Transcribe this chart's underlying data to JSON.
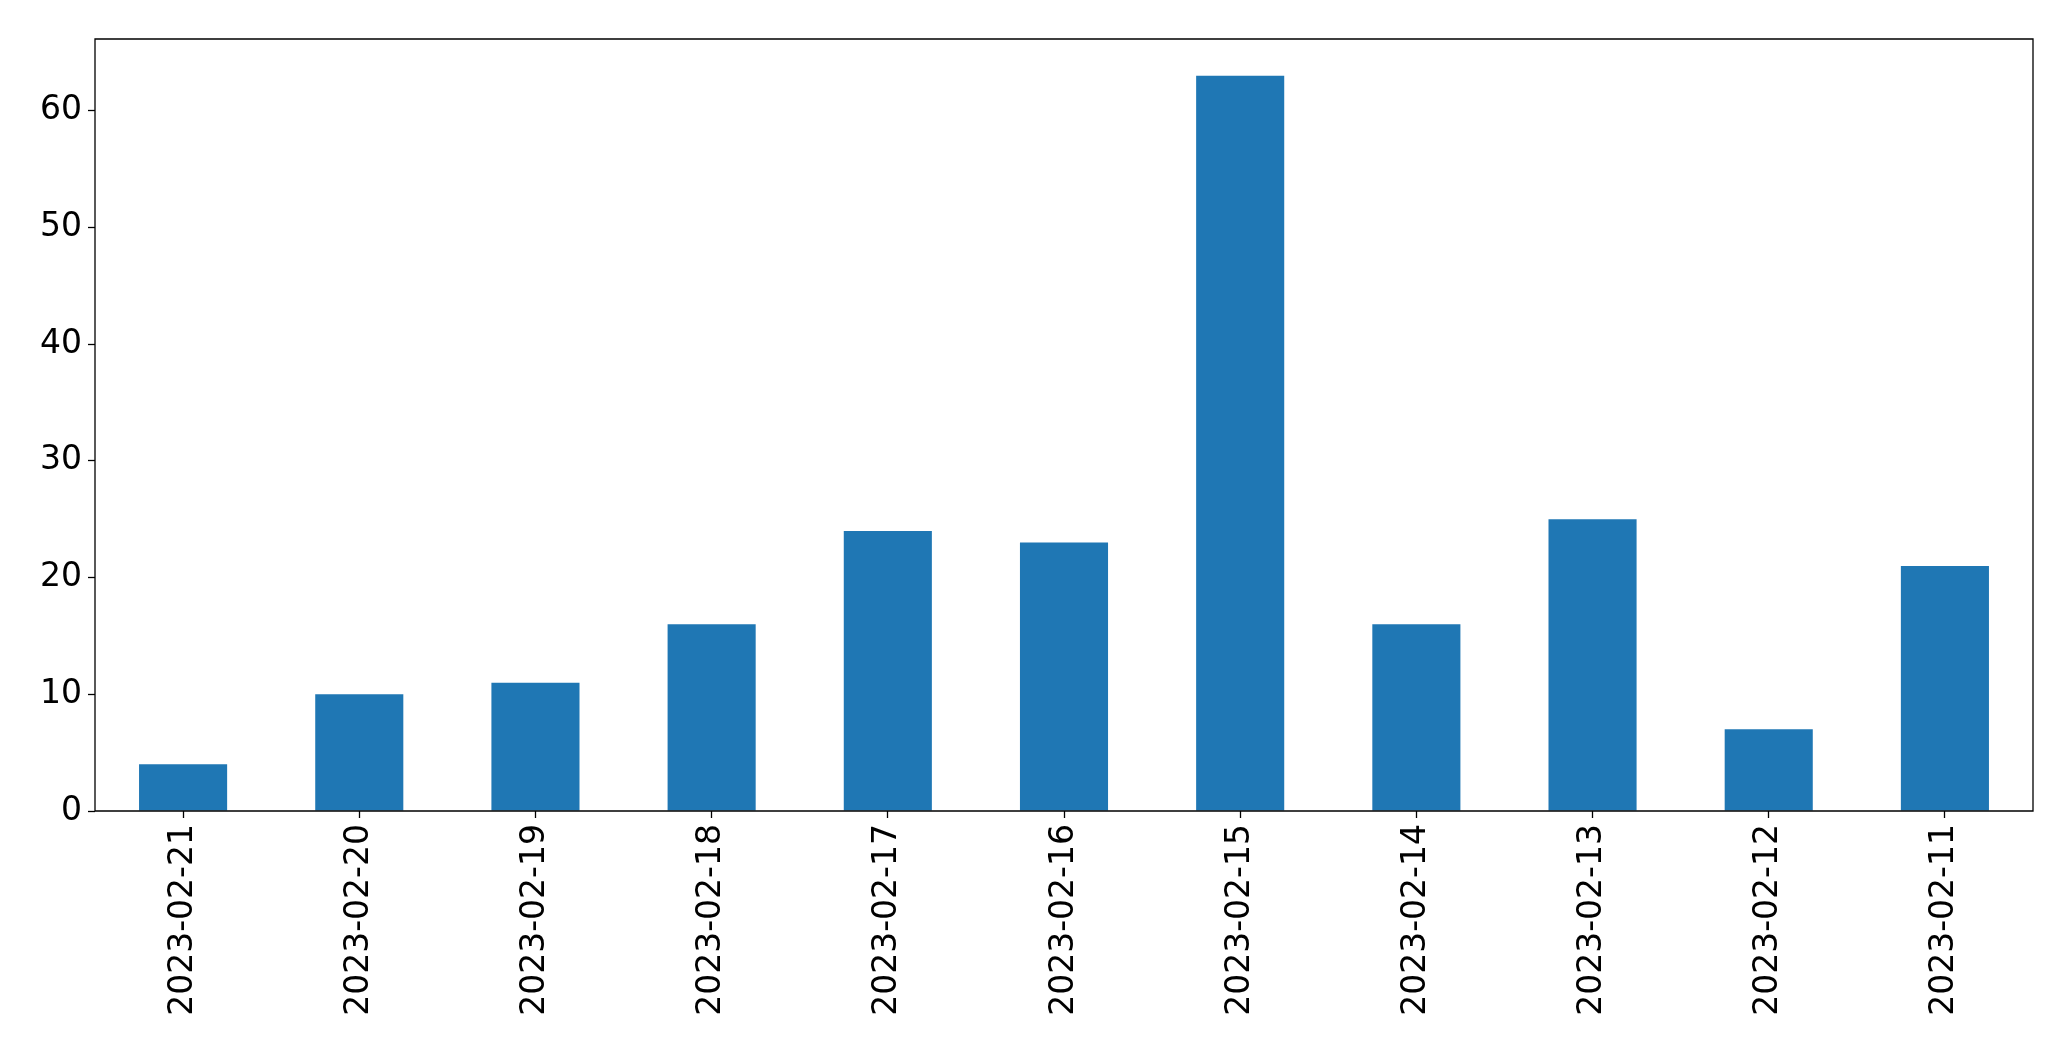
{
  "chart_data": {
    "type": "bar",
    "categories": [
      "2023-02-21",
      "2023-02-20",
      "2023-02-19",
      "2023-02-18",
      "2023-02-17",
      "2023-02-16",
      "2023-02-15",
      "2023-02-14",
      "2023-02-13",
      "2023-02-12",
      "2023-02-11"
    ],
    "values": [
      4,
      10,
      11,
      16,
      24,
      23,
      63,
      16,
      25,
      7,
      21
    ],
    "color": "#1f77b4",
    "ylim": [
      0,
      66.15
    ],
    "yticks": [
      0,
      10,
      20,
      30,
      40,
      50,
      60
    ],
    "grid": false,
    "legend": false
  }
}
